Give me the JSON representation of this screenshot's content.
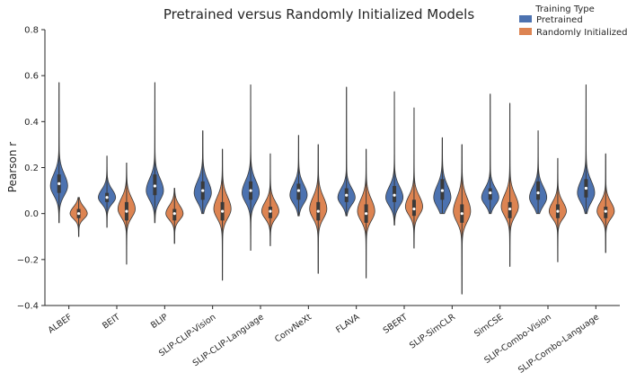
{
  "chart_data": {
    "type": "violin",
    "title": "Pretrained versus Randomly Initialized Models",
    "xlabel": "",
    "ylabel": "Pearson r",
    "ylim": [
      -0.4,
      0.8
    ],
    "yticks": [
      -0.4,
      -0.2,
      0.0,
      0.2,
      0.4,
      0.6,
      0.8
    ],
    "ytick_labels": [
      "−0.4",
      "−0.2",
      "0.0",
      "0.2",
      "0.4",
      "0.6",
      "0.8"
    ],
    "legend": {
      "title": "Training Type",
      "position": "top-right",
      "entries": [
        "Pretrained",
        "Randomly Initialized"
      ]
    },
    "colors": {
      "Pretrained": "#4c72b0",
      "Randomly Initialized": "#dd8452"
    },
    "categories": [
      "ALBEF",
      "BEIT",
      "BLIP",
      "SLIP-CLIP-Vision",
      "SLIP-CLIP-Language",
      "ConvNeXt",
      "FLAVA",
      "SBERT",
      "SLIP-SimCLR",
      "SimCSE",
      "SLIP-Combo-Vision",
      "SLIP-Combo-Language"
    ],
    "series": [
      {
        "name": "Pretrained",
        "stats": [
          {
            "min": -0.04,
            "q1": 0.09,
            "median": 0.13,
            "q3": 0.17,
            "max": 0.57,
            "peak": 0.12,
            "spread": 0.045
          },
          {
            "min": -0.06,
            "q1": 0.05,
            "median": 0.07,
            "q3": 0.09,
            "max": 0.25,
            "peak": 0.07,
            "spread": 0.03
          },
          {
            "min": -0.04,
            "q1": 0.08,
            "median": 0.12,
            "q3": 0.17,
            "max": 0.57,
            "peak": 0.1,
            "spread": 0.045
          },
          {
            "min": 0.0,
            "q1": 0.06,
            "median": 0.1,
            "q3": 0.14,
            "max": 0.36,
            "peak": 0.09,
            "spread": 0.045
          },
          {
            "min": -0.16,
            "q1": 0.06,
            "median": 0.1,
            "q3": 0.14,
            "max": 0.56,
            "peak": 0.09,
            "spread": 0.045
          },
          {
            "min": -0.01,
            "q1": 0.06,
            "median": 0.1,
            "q3": 0.13,
            "max": 0.34,
            "peak": 0.08,
            "spread": 0.04
          },
          {
            "min": -0.01,
            "q1": 0.05,
            "median": 0.08,
            "q3": 0.11,
            "max": 0.55,
            "peak": 0.07,
            "spread": 0.035
          },
          {
            "min": -0.05,
            "q1": 0.05,
            "median": 0.08,
            "q3": 0.12,
            "max": 0.53,
            "peak": 0.07,
            "spread": 0.04
          },
          {
            "min": 0.0,
            "q1": 0.06,
            "median": 0.1,
            "q3": 0.15,
            "max": 0.33,
            "peak": 0.07,
            "spread": 0.045
          },
          {
            "min": 0.0,
            "q1": 0.06,
            "median": 0.09,
            "q3": 0.11,
            "max": 0.52,
            "peak": 0.07,
            "spread": 0.035
          },
          {
            "min": 0.0,
            "q1": 0.06,
            "median": 0.09,
            "q3": 0.14,
            "max": 0.36,
            "peak": 0.07,
            "spread": 0.04
          },
          {
            "min": 0.0,
            "q1": 0.07,
            "median": 0.11,
            "q3": 0.15,
            "max": 0.56,
            "peak": 0.09,
            "spread": 0.045
          }
        ]
      },
      {
        "name": "Randomly Initialized",
        "stats": [
          {
            "min": -0.1,
            "q1": -0.02,
            "median": 0.0,
            "q3": 0.02,
            "max": 0.07,
            "peak": 0.0,
            "spread": 0.025
          },
          {
            "min": -0.22,
            "q1": -0.03,
            "median": 0.01,
            "q3": 0.05,
            "max": 0.22,
            "peak": 0.02,
            "spread": 0.04
          },
          {
            "min": -0.13,
            "q1": -0.03,
            "median": 0.0,
            "q3": 0.02,
            "max": 0.11,
            "peak": 0.0,
            "spread": 0.03
          },
          {
            "min": -0.29,
            "q1": -0.03,
            "median": 0.01,
            "q3": 0.05,
            "max": 0.28,
            "peak": 0.02,
            "spread": 0.045
          },
          {
            "min": -0.14,
            "q1": -0.02,
            "median": 0.01,
            "q3": 0.03,
            "max": 0.26,
            "peak": 0.01,
            "spread": 0.035
          },
          {
            "min": -0.26,
            "q1": -0.03,
            "median": 0.01,
            "q3": 0.05,
            "max": 0.3,
            "peak": 0.02,
            "spread": 0.045
          },
          {
            "min": -0.28,
            "q1": -0.04,
            "median": 0.0,
            "q3": 0.04,
            "max": 0.28,
            "peak": 0.01,
            "spread": 0.045
          },
          {
            "min": -0.15,
            "q1": -0.01,
            "median": 0.02,
            "q3": 0.06,
            "max": 0.46,
            "peak": 0.03,
            "spread": 0.04
          },
          {
            "min": -0.35,
            "q1": -0.04,
            "median": 0.0,
            "q3": 0.04,
            "max": 0.3,
            "peak": 0.01,
            "spread": 0.05
          },
          {
            "min": -0.23,
            "q1": -0.02,
            "median": 0.02,
            "q3": 0.05,
            "max": 0.48,
            "peak": 0.03,
            "spread": 0.045
          },
          {
            "min": -0.21,
            "q1": -0.02,
            "median": 0.01,
            "q3": 0.04,
            "max": 0.24,
            "peak": 0.01,
            "spread": 0.035
          },
          {
            "min": -0.17,
            "q1": -0.02,
            "median": 0.01,
            "q3": 0.03,
            "max": 0.26,
            "peak": 0.01,
            "spread": 0.035
          }
        ]
      }
    ]
  }
}
